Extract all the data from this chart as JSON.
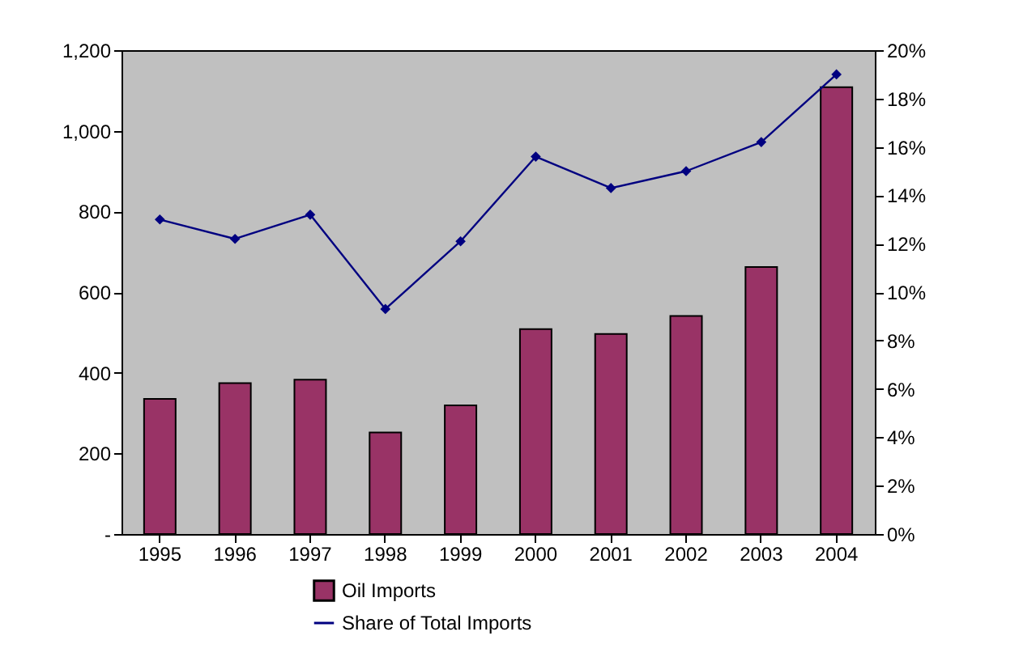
{
  "chart_data": {
    "type": "bar",
    "categories": [
      "1995",
      "1996",
      "1997",
      "1998",
      "1999",
      "2000",
      "2001",
      "2002",
      "2003",
      "2004"
    ],
    "series": [
      {
        "name": "Oil Imports",
        "color": "#993366",
        "values": [
          335,
          374,
          383,
          252,
          319,
          508,
          496,
          541,
          662,
          1108
        ]
      },
      {
        "name": "Share of Total Imports",
        "type": "line",
        "axis": "y2",
        "color": "#000080",
        "values": [
          13.0,
          12.2,
          13.2,
          9.3,
          12.1,
          15.6,
          14.3,
          15.0,
          16.2,
          19.0
        ]
      }
    ],
    "ylim": [
      0,
      1200
    ],
    "yticks": [
      {
        "value": 0,
        "label": "-"
      },
      200,
      400,
      600,
      800,
      {
        "value": 1000,
        "label": "1,000"
      },
      {
        "value": 1200,
        "label": "1,200"
      }
    ],
    "y2lim": [
      0,
      20
    ],
    "y2ticks": [
      {
        "value": 0,
        "label": "0%"
      },
      {
        "value": 2,
        "label": "2%"
      },
      {
        "value": 4,
        "label": "4%"
      },
      {
        "value": 6,
        "label": "6%"
      },
      {
        "value": 8,
        "label": "8%"
      },
      {
        "value": 10,
        "label": "10%"
      },
      {
        "value": 12,
        "label": "12%"
      },
      {
        "value": 14,
        "label": "14%"
      },
      {
        "value": 16,
        "label": "16%"
      },
      {
        "value": 18,
        "label": "18%"
      },
      {
        "value": 20,
        "label": "20%"
      }
    ],
    "legend": "bottom",
    "grid": false,
    "marker": "diamond"
  }
}
